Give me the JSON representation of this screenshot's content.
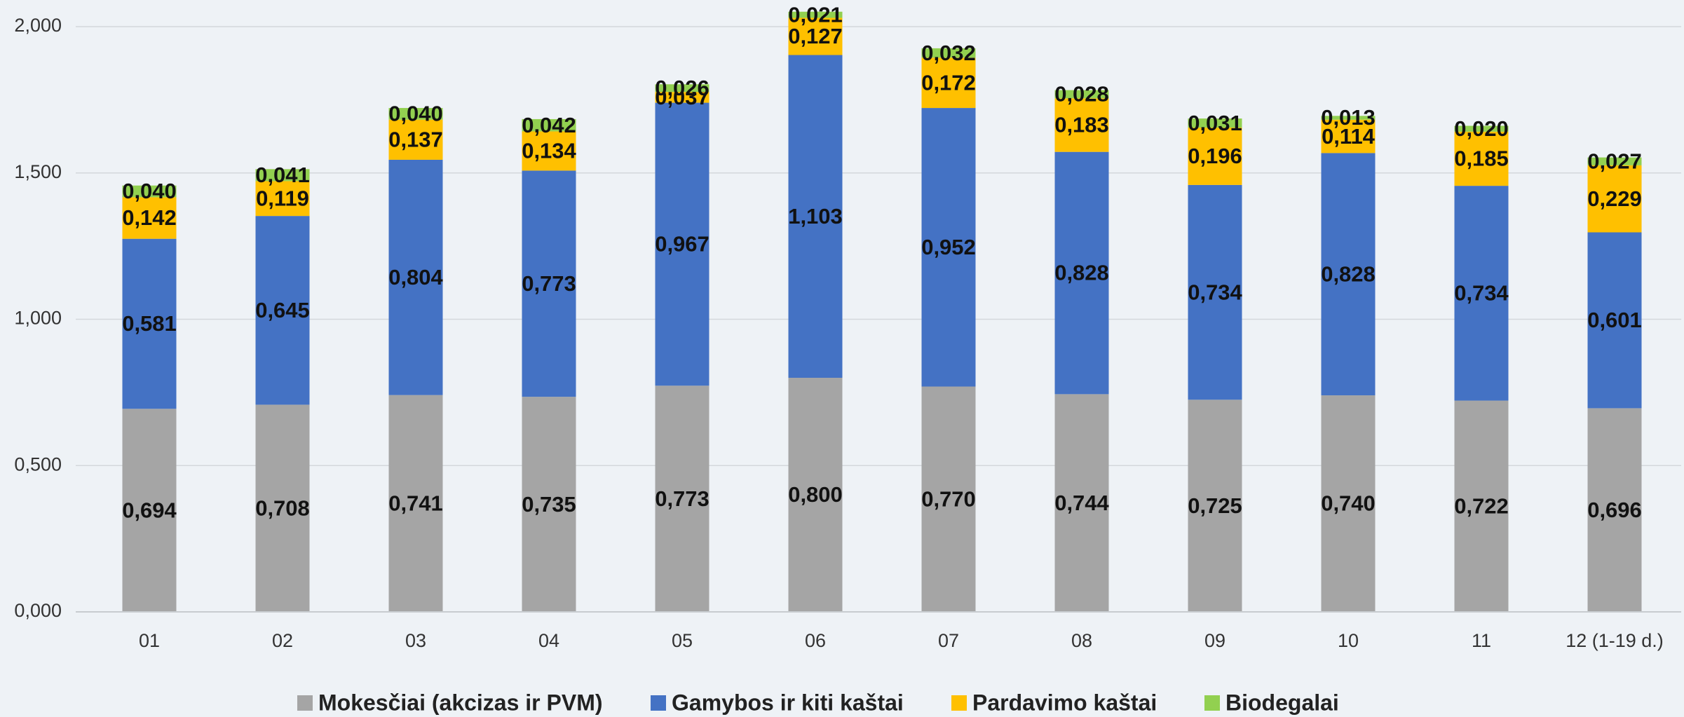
{
  "chart_data": {
    "type": "stacked_bar",
    "categories": [
      "01",
      "02",
      "03",
      "04",
      "05",
      "06",
      "07",
      "08",
      "09",
      "10",
      "11",
      "12 (1-19 d.)"
    ],
    "ylim": [
      0,
      2
    ],
    "yticks": [
      {
        "value": 0,
        "label": "0,000"
      },
      {
        "value": 0.5,
        "label": "0,500"
      },
      {
        "value": 1,
        "label": "1,000"
      },
      {
        "value": 1.5,
        "label": "1,500"
      },
      {
        "value": 2,
        "label": "2,000"
      }
    ],
    "grid": true,
    "legend": "bottom",
    "series": [
      {
        "name": "Mokesčiai (akcizas ir PVM)",
        "color": "#a5a5a5",
        "values": [
          0.694,
          0.708,
          0.741,
          0.735,
          0.773,
          0.8,
          0.77,
          0.744,
          0.725,
          0.74,
          0.722,
          0.696
        ],
        "value_labels": [
          "0,694",
          "0,708",
          "0,741",
          "0,735",
          "0,773",
          "0,800",
          "0,770",
          "0,744",
          "0,725",
          "0,740",
          "0,722",
          "0,696"
        ]
      },
      {
        "name": "Gamybos ir kiti kaštai",
        "color": "#4472c4",
        "values": [
          0.581,
          0.645,
          0.804,
          0.773,
          0.967,
          1.103,
          0.952,
          0.828,
          0.734,
          0.828,
          0.734,
          0.601
        ],
        "value_labels": [
          "0,581",
          "0,645",
          "0,804",
          "0,773",
          "0,967",
          "1,103",
          "0,952",
          "0,828",
          "0,734",
          "0,828",
          "0,734",
          "0,601"
        ]
      },
      {
        "name": "Pardavimo kaštai",
        "color": "#ffc000",
        "values": [
          0.142,
          0.119,
          0.137,
          0.134,
          0.037,
          0.127,
          0.172,
          0.183,
          0.196,
          0.114,
          0.185,
          0.229
        ],
        "value_labels": [
          "0,142",
          "0,119",
          "0,137",
          "0,134",
          "0,037",
          "0,127",
          "0,172",
          "0,183",
          "0,196",
          "0,114",
          "0,185",
          "0,229"
        ]
      },
      {
        "name": "Biodegalai",
        "color": "#92d050",
        "values": [
          0.04,
          0.041,
          0.04,
          0.042,
          0.026,
          0.021,
          0.032,
          0.028,
          0.031,
          0.013,
          0.02,
          0.027
        ],
        "value_labels": [
          "0,040",
          "0,041",
          "0,040",
          "0,042",
          "0,026",
          "0,021",
          "0,032",
          "0,028",
          "0,031",
          "0,013",
          "0,020",
          "0,027"
        ]
      }
    ]
  }
}
